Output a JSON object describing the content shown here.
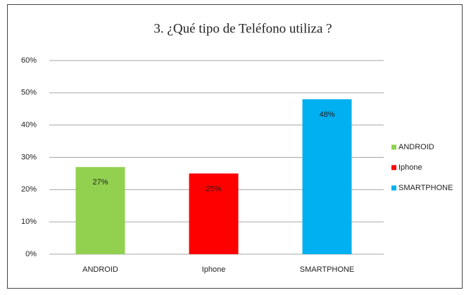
{
  "chart_data": {
    "type": "bar",
    "title": "3. ¿Qué tipo de Teléfono utiliza ?",
    "categories": [
      "ANDROID",
      "Iphone",
      "SMARTPHONE"
    ],
    "values": [
      27,
      25,
      48
    ],
    "value_labels": [
      "27%",
      "25%",
      "48%"
    ],
    "colors": [
      "#92d050",
      "#ff0000",
      "#00b0f0"
    ],
    "ylim": [
      0,
      60
    ],
    "yticks": [
      {
        "value": 0,
        "label": "0%"
      },
      {
        "value": 10,
        "label": "10%"
      },
      {
        "value": 20,
        "label": "20%"
      },
      {
        "value": 30,
        "label": "30%"
      },
      {
        "value": 40,
        "label": "40%"
      },
      {
        "value": 50,
        "label": "50%"
      },
      {
        "value": 60,
        "label": "60%"
      }
    ],
    "grid": true,
    "legend": "right"
  }
}
